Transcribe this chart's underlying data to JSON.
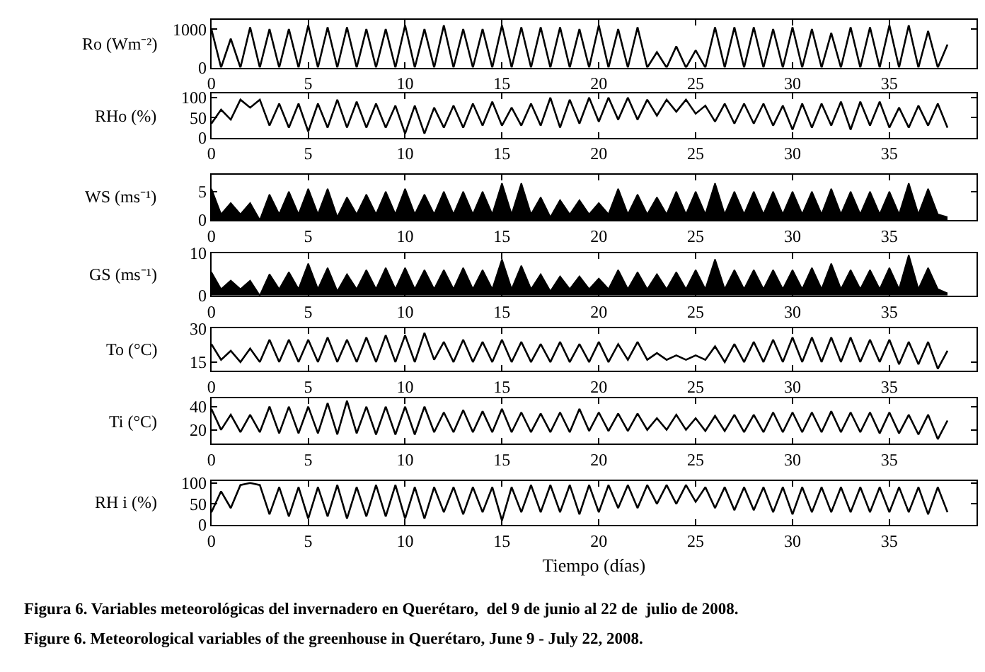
{
  "chart_data": [
    {
      "type": "line",
      "ylabel": "Ro (Wm⁻²)",
      "color": "#000000",
      "xlim": [
        0,
        39.5
      ],
      "xticks": [
        0,
        5,
        10,
        15,
        20,
        25,
        30,
        35
      ],
      "ylim": [
        0,
        1250
      ],
      "yticks": [
        0,
        1000
      ],
      "x": [
        0,
        0.5,
        1,
        1.5,
        2,
        2.5,
        3,
        3.5,
        4,
        4.5,
        5,
        5.5,
        6,
        6.5,
        7,
        7.5,
        8,
        8.5,
        9,
        9.5,
        10,
        10.5,
        11,
        11.5,
        12,
        12.5,
        13,
        13.5,
        14,
        14.5,
        15,
        15.5,
        16,
        16.5,
        17,
        17.5,
        18,
        18.5,
        19,
        19.5,
        20,
        20.5,
        21,
        21.5,
        22,
        22.5,
        23,
        23.5,
        24,
        24.5,
        25,
        25.5,
        26,
        26.5,
        27,
        27.5,
        28,
        28.5,
        29,
        29.5,
        30,
        30.5,
        31,
        31.5,
        32,
        32.5,
        33,
        33.5,
        34,
        34.5,
        35,
        35.5,
        36,
        36.5,
        37,
        37.5,
        38
      ],
      "values": [
        1000,
        0,
        750,
        0,
        1050,
        0,
        1000,
        0,
        1000,
        0,
        1100,
        0,
        1050,
        0,
        1050,
        0,
        1000,
        0,
        1000,
        0,
        1100,
        0,
        1000,
        0,
        1100,
        0,
        1000,
        0,
        1000,
        0,
        1100,
        0,
        1050,
        0,
        1050,
        0,
        1050,
        0,
        1000,
        0,
        1100,
        0,
        1000,
        0,
        1050,
        0,
        400,
        0,
        550,
        0,
        450,
        0,
        1050,
        0,
        1050,
        0,
        1050,
        0,
        1000,
        0,
        1050,
        0,
        1000,
        0,
        900,
        0,
        1050,
        0,
        1050,
        0,
        1100,
        0,
        1100,
        0,
        950,
        0,
        600
      ]
    },
    {
      "type": "line",
      "ylabel": "RHo (%)",
      "color": "#000000",
      "xlim": [
        0,
        39.5
      ],
      "xticks": [
        0,
        5,
        10,
        15,
        20,
        25,
        30,
        35
      ],
      "ylim": [
        0,
        110
      ],
      "yticks": [
        0,
        50,
        100
      ],
      "x": [
        0,
        0.5,
        1,
        1.5,
        2,
        2.5,
        3,
        3.5,
        4,
        4.5,
        5,
        5.5,
        6,
        6.5,
        7,
        7.5,
        8,
        8.5,
        9,
        9.5,
        10,
        10.5,
        11,
        11.5,
        12,
        12.5,
        13,
        13.5,
        14,
        14.5,
        15,
        15.5,
        16,
        16.5,
        17,
        17.5,
        18,
        18.5,
        19,
        19.5,
        20,
        20.5,
        21,
        21.5,
        22,
        22.5,
        23,
        23.5,
        24,
        24.5,
        25,
        25.5,
        26,
        26.5,
        27,
        27.5,
        28,
        28.5,
        29,
        29.5,
        30,
        30.5,
        31,
        31.5,
        32,
        32.5,
        33,
        33.5,
        34,
        34.5,
        35,
        35.5,
        36,
        36.5,
        37,
        37.5,
        38
      ],
      "values": [
        35,
        70,
        45,
        95,
        75,
        95,
        30,
        85,
        25,
        85,
        15,
        85,
        25,
        95,
        25,
        90,
        25,
        85,
        25,
        80,
        10,
        80,
        10,
        75,
        25,
        80,
        25,
        85,
        30,
        90,
        30,
        75,
        30,
        85,
        30,
        100,
        25,
        95,
        35,
        100,
        40,
        100,
        45,
        100,
        45,
        95,
        55,
        95,
        65,
        95,
        60,
        80,
        40,
        85,
        35,
        85,
        35,
        85,
        30,
        80,
        20,
        85,
        25,
        85,
        30,
        90,
        20,
        90,
        30,
        90,
        25,
        75,
        25,
        80,
        30,
        85,
        25
      ]
    },
    {
      "type": "area",
      "ylabel": "WS (ms⁻¹)",
      "color": "#000000",
      "xlim": [
        0,
        39.5
      ],
      "xticks": [
        0,
        5,
        10,
        15,
        20,
        25,
        30,
        35
      ],
      "ylim": [
        0,
        8
      ],
      "yticks": [
        0,
        5
      ],
      "x": [
        0,
        0.5,
        1,
        1.5,
        2,
        2.5,
        3,
        3.5,
        4,
        4.5,
        5,
        5.5,
        6,
        6.5,
        7,
        7.5,
        8,
        8.5,
        9,
        9.5,
        10,
        10.5,
        11,
        11.5,
        12,
        12.5,
        13,
        13.5,
        14,
        14.5,
        15,
        15.5,
        16,
        16.5,
        17,
        17.5,
        18,
        18.5,
        19,
        19.5,
        20,
        20.5,
        21,
        21.5,
        22,
        22.5,
        23,
        23.5,
        24,
        24.5,
        25,
        25.5,
        26,
        26.5,
        27,
        27.5,
        28,
        28.5,
        29,
        29.5,
        30,
        30.5,
        31,
        31.5,
        32,
        32.5,
        33,
        33.5,
        34,
        34.5,
        35,
        35.5,
        36,
        36.5,
        37,
        37.5,
        38
      ],
      "values": [
        5.5,
        1,
        3,
        1,
        3,
        0,
        4.5,
        1,
        5,
        1,
        5.5,
        1,
        5.5,
        0.5,
        4,
        1,
        4.5,
        1,
        5,
        1,
        5.5,
        1,
        4.5,
        1,
        5,
        1,
        5,
        1,
        5,
        1,
        6.5,
        1,
        6.5,
        1,
        4,
        0.5,
        3.5,
        1,
        3.5,
        1,
        3,
        1,
        5.5,
        1,
        4.5,
        1,
        4,
        1,
        5,
        1,
        5,
        1,
        6.5,
        1,
        5,
        1,
        5,
        1,
        5,
        1,
        5,
        1,
        5,
        1,
        5.5,
        1,
        5,
        1,
        5,
        1,
        5,
        1,
        6.5,
        1,
        5.5,
        1,
        0.5
      ]
    },
    {
      "type": "area",
      "ylabel": "GS (ms⁻¹)",
      "color": "#000000",
      "xlim": [
        0,
        39.5
      ],
      "xticks": [
        0,
        5,
        10,
        15,
        20,
        25,
        30,
        35
      ],
      "ylim": [
        0,
        10
      ],
      "yticks": [
        0,
        10
      ],
      "x": [
        0,
        0.5,
        1,
        1.5,
        2,
        2.5,
        3,
        3.5,
        4,
        4.5,
        5,
        5.5,
        6,
        6.5,
        7,
        7.5,
        8,
        8.5,
        9,
        9.5,
        10,
        10.5,
        11,
        11.5,
        12,
        12.5,
        13,
        13.5,
        14,
        14.5,
        15,
        15.5,
        16,
        16.5,
        17,
        17.5,
        18,
        18.5,
        19,
        19.5,
        20,
        20.5,
        21,
        21.5,
        22,
        22.5,
        23,
        23.5,
        24,
        24.5,
        25,
        25.5,
        26,
        26.5,
        27,
        27.5,
        28,
        28.5,
        29,
        29.5,
        30,
        30.5,
        31,
        31.5,
        32,
        32.5,
        33,
        33.5,
        34,
        34.5,
        35,
        35.5,
        36,
        36.5,
        37,
        37.5,
        38
      ],
      "values": [
        5.5,
        1.5,
        3.5,
        1.5,
        3.5,
        0,
        5,
        1.5,
        5.5,
        1.5,
        7.5,
        1.5,
        6.5,
        1,
        5,
        1.5,
        6,
        1.5,
        6.5,
        1.5,
        6.5,
        1.5,
        6,
        1.5,
        6,
        1.5,
        6.5,
        1.5,
        6,
        1.5,
        8.5,
        1.5,
        7,
        1.5,
        5,
        1,
        4.5,
        1.5,
        4.5,
        1.5,
        4,
        1.5,
        6,
        1.5,
        5.5,
        1.5,
        5,
        1.5,
        5.5,
        1.5,
        6,
        1.5,
        8.5,
        1.5,
        6,
        1.5,
        6,
        1.5,
        6,
        1.5,
        6,
        1.5,
        6.5,
        1.5,
        7.5,
        1.5,
        6,
        1.5,
        6,
        1.5,
        6.5,
        1.5,
        9.5,
        1.5,
        6.5,
        1.5,
        0.5
      ]
    },
    {
      "type": "line",
      "ylabel": "To (°C)",
      "color": "#000000",
      "xlim": [
        0,
        39.5
      ],
      "xticks": [
        0,
        5,
        10,
        15,
        20,
        25,
        30,
        35
      ],
      "ylim": [
        11,
        30
      ],
      "yticks": [
        15,
        30
      ],
      "x": [
        0,
        0.5,
        1,
        1.5,
        2,
        2.5,
        3,
        3.5,
        4,
        4.5,
        5,
        5.5,
        6,
        6.5,
        7,
        7.5,
        8,
        8.5,
        9,
        9.5,
        10,
        10.5,
        11,
        11.5,
        12,
        12.5,
        13,
        13.5,
        14,
        14.5,
        15,
        15.5,
        16,
        16.5,
        17,
        17.5,
        18,
        18.5,
        19,
        19.5,
        20,
        20.5,
        21,
        21.5,
        22,
        22.5,
        23,
        23.5,
        24,
        24.5,
        25,
        25.5,
        26,
        26.5,
        27,
        27.5,
        28,
        28.5,
        29,
        29.5,
        30,
        30.5,
        31,
        31.5,
        32,
        32.5,
        33,
        33.5,
        34,
        34.5,
        35,
        35.5,
        36,
        36.5,
        37,
        37.5,
        38
      ],
      "values": [
        23,
        16,
        20,
        15,
        21,
        15,
        25,
        15,
        25,
        15,
        25,
        15,
        26,
        15,
        25,
        15,
        26,
        15,
        27,
        15,
        27,
        15,
        28,
        16,
        24,
        15,
        25,
        15,
        24,
        15,
        25,
        15,
        24,
        15,
        23,
        15,
        24,
        15,
        23,
        15,
        24,
        15,
        23,
        16,
        24,
        16,
        19,
        16,
        18,
        16,
        18,
        16,
        22,
        15,
        23,
        15,
        24,
        15,
        25,
        15,
        26,
        15,
        26,
        15,
        26,
        15,
        26,
        15,
        25,
        15,
        25,
        14,
        24,
        14,
        24,
        12,
        20
      ]
    },
    {
      "type": "line",
      "ylabel": "Ti (°C)",
      "color": "#000000",
      "xlim": [
        0,
        39.5
      ],
      "xticks": [
        0,
        5,
        10,
        15,
        20,
        25,
        30,
        35
      ],
      "ylim": [
        8,
        47
      ],
      "yticks": [
        20,
        40
      ],
      "x": [
        0,
        0.5,
        1,
        1.5,
        2,
        2.5,
        3,
        3.5,
        4,
        4.5,
        5,
        5.5,
        6,
        6.5,
        7,
        7.5,
        8,
        8.5,
        9,
        9.5,
        10,
        10.5,
        11,
        11.5,
        12,
        12.5,
        13,
        13.5,
        14,
        14.5,
        15,
        15.5,
        16,
        16.5,
        17,
        17.5,
        18,
        18.5,
        19,
        19.5,
        20,
        20.5,
        21,
        21.5,
        22,
        22.5,
        23,
        23.5,
        24,
        24.5,
        25,
        25.5,
        26,
        26.5,
        27,
        27.5,
        28,
        28.5,
        29,
        29.5,
        30,
        30.5,
        31,
        31.5,
        32,
        32.5,
        33,
        33.5,
        34,
        34.5,
        35,
        35.5,
        36,
        36.5,
        37,
        37.5,
        38
      ],
      "values": [
        38,
        20,
        33,
        18,
        33,
        18,
        40,
        17,
        40,
        17,
        40,
        17,
        43,
        16,
        45,
        17,
        40,
        16,
        40,
        16,
        40,
        16,
        40,
        18,
        35,
        18,
        37,
        18,
        36,
        18,
        38,
        18,
        35,
        18,
        34,
        18,
        35,
        18,
        38,
        19,
        35,
        19,
        34,
        19,
        34,
        20,
        30,
        20,
        33,
        20,
        30,
        19,
        32,
        19,
        33,
        18,
        33,
        18,
        35,
        18,
        35,
        18,
        35,
        18,
        36,
        18,
        35,
        18,
        35,
        17,
        35,
        17,
        33,
        16,
        33,
        12,
        28
      ]
    },
    {
      "type": "line",
      "ylabel": "RH i (%)",
      "xlabel": "Tiempo (días)",
      "color": "#000000",
      "xlim": [
        0,
        39.5
      ],
      "xticks": [
        0,
        5,
        10,
        15,
        20,
        25,
        30,
        35
      ],
      "ylim": [
        0,
        105
      ],
      "yticks": [
        0,
        50,
        100
      ],
      "annotations": [
        "Figura 6. Variables meteorológicas del invernadero en Querétaro,  del 9 de junio al 22 de  julio de 2008.",
        "Figure 6. Meteorological variables of the greenhouse in Querétaro, June 9 - July 22, 2008."
      ],
      "x": [
        0,
        0.5,
        1,
        1.5,
        2,
        2.5,
        3,
        3.5,
        4,
        4.5,
        5,
        5.5,
        6,
        6.5,
        7,
        7.5,
        8,
        8.5,
        9,
        9.5,
        10,
        10.5,
        11,
        11.5,
        12,
        12.5,
        13,
        13.5,
        14,
        14.5,
        15,
        15.5,
        16,
        16.5,
        17,
        17.5,
        18,
        18.5,
        19,
        19.5,
        20,
        20.5,
        21,
        21.5,
        22,
        22.5,
        23,
        23.5,
        24,
        24.5,
        25,
        25.5,
        26,
        26.5,
        27,
        27.5,
        28,
        28.5,
        29,
        29.5,
        30,
        30.5,
        31,
        31.5,
        32,
        32.5,
        33,
        33.5,
        34,
        34.5,
        35,
        35.5,
        36,
        36.5,
        37,
        37.5,
        38
      ],
      "values": [
        30,
        80,
        40,
        95,
        100,
        95,
        25,
        90,
        20,
        90,
        15,
        90,
        20,
        95,
        15,
        90,
        20,
        95,
        20,
        95,
        15,
        90,
        15,
        90,
        30,
        90,
        25,
        90,
        30,
        90,
        10,
        90,
        30,
        95,
        30,
        95,
        30,
        95,
        25,
        95,
        30,
        95,
        40,
        95,
        40,
        95,
        50,
        95,
        50,
        95,
        55,
        90,
        40,
        90,
        35,
        90,
        35,
        90,
        30,
        90,
        25,
        90,
        30,
        90,
        30,
        90,
        30,
        90,
        30,
        90,
        30,
        90,
        30,
        90,
        25,
        90,
        30
      ]
    }
  ]
}
